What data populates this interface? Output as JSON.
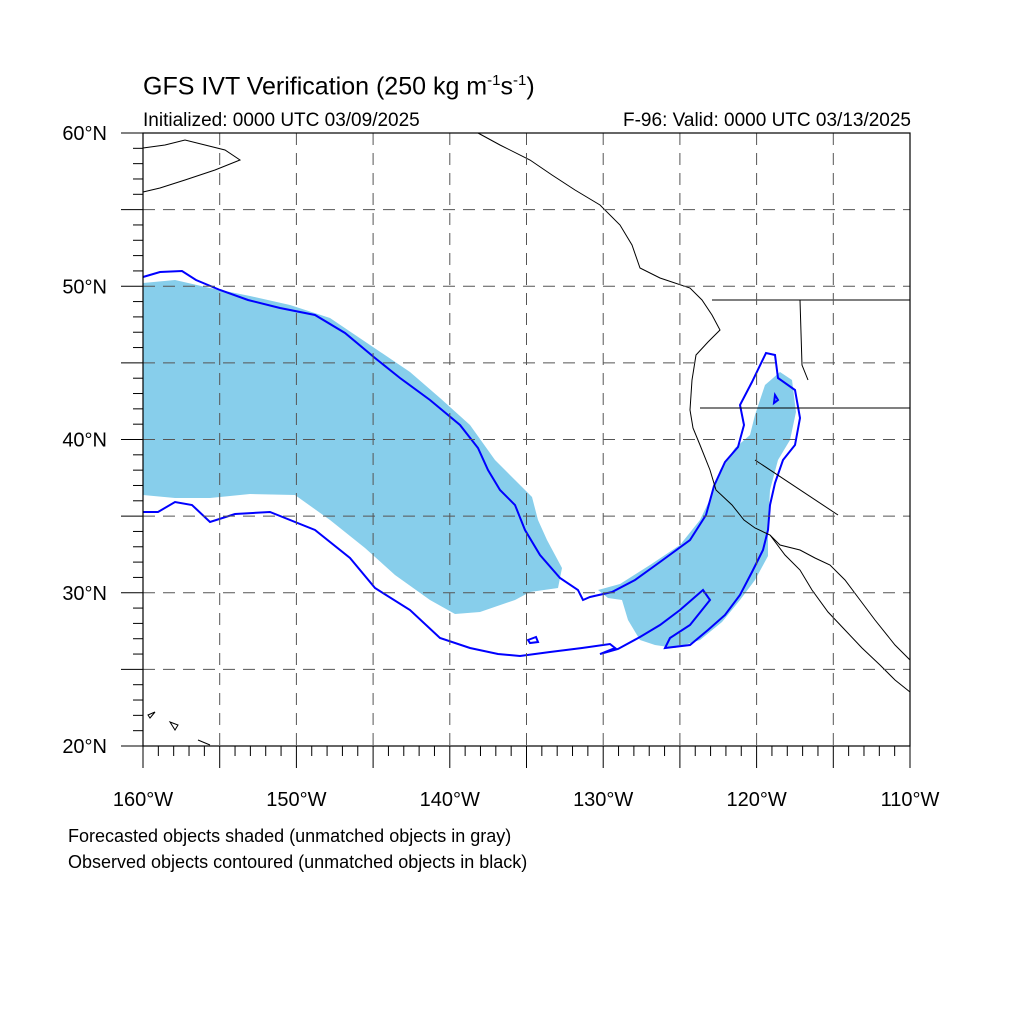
{
  "header": {
    "title_main": "GFS IVT Verification (250 kg m",
    "title_exp1": "-1",
    "title_mid": "s",
    "title_exp2": "-1",
    "title_end": ")",
    "initialized": "Initialized: 0000 UTC 03/09/2025",
    "valid": "F-96: Valid: 0000 UTC 03/13/2025"
  },
  "map": {
    "lon_range": [
      -160,
      -110
    ],
    "lat_range": [
      20,
      60
    ],
    "lat_labels": [
      {
        "lat": 60,
        "text": "60°N"
      },
      {
        "lat": 50,
        "text": "50°N"
      },
      {
        "lat": 40,
        "text": "40°N"
      },
      {
        "lat": 30,
        "text": "30°N"
      },
      {
        "lat": 20,
        "text": "20°N"
      }
    ],
    "lon_labels": [
      {
        "lon": -160,
        "text": "160°W"
      },
      {
        "lon": -150,
        "text": "150°W"
      },
      {
        "lon": -140,
        "text": "140°W"
      },
      {
        "lon": -130,
        "text": "130°W"
      },
      {
        "lon": -120,
        "text": "120°W"
      },
      {
        "lon": -110,
        "text": "110°W"
      }
    ],
    "forecast_fill_color": "#87ceeb",
    "observed_contour_color": "#0000ff",
    "coast_color": "#000000"
  },
  "notes": {
    "line1": "Forecasted objects shaded (unmatched objects in gray)",
    "line2": "Observed objects contoured (unmatched objects in black)"
  }
}
